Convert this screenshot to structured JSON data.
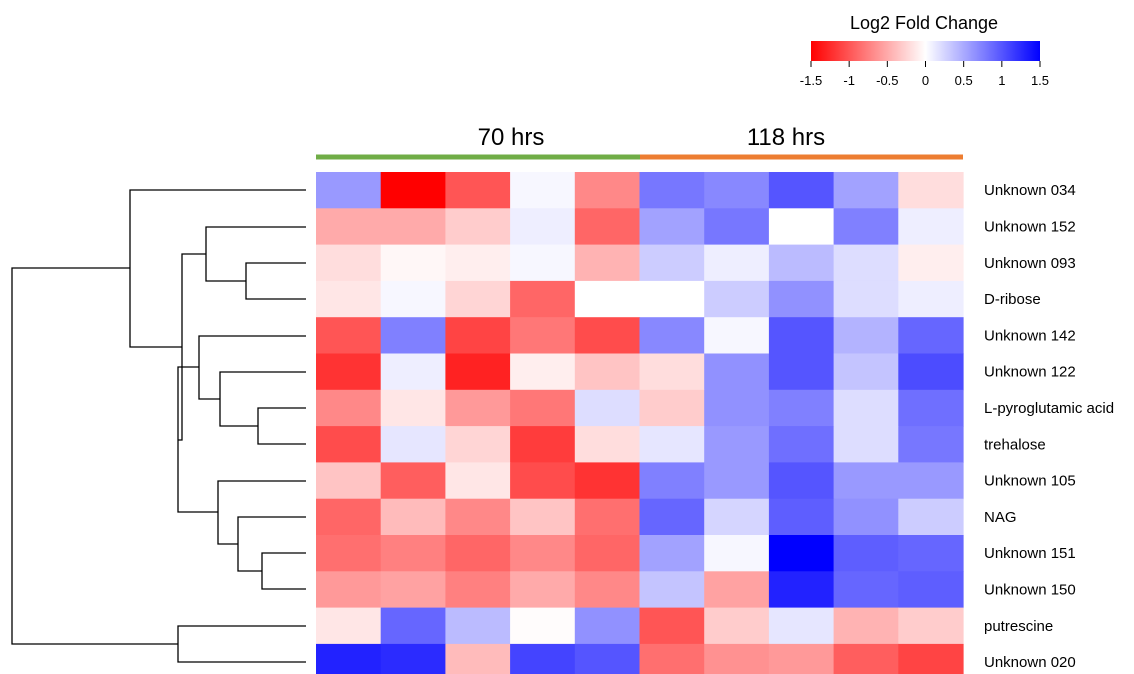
{
  "chart_data": {
    "type": "heatmap",
    "legend": {
      "title": "Log2 Fold Change",
      "ticks": [
        "-1.5",
        "-1",
        "-0.5",
        "0",
        "0.5",
        "1",
        "1.5"
      ],
      "range": [
        -1.5,
        1.5
      ],
      "colors": {
        "low": "#ff0000",
        "mid": "#ffffff",
        "high": "#0000ff"
      }
    },
    "groups": [
      {
        "label": "70 hrs",
        "columns": 5,
        "color": "#70ad47"
      },
      {
        "label": "118 hrs",
        "columns": 5,
        "color": "#ed7d31"
      }
    ],
    "rows": [
      "Unknown 034",
      "Unknown 152",
      "Unknown 093",
      "D-ribose",
      "Unknown 142",
      "Unknown 122",
      "L-pyroglutamic acid",
      "trehalose",
      "Unknown 105",
      "NAG",
      "Unknown 151",
      "Unknown 150",
      "putrescine",
      "Unknown 020"
    ],
    "values": [
      [
        0.6,
        -1.5,
        -1.0,
        0.05,
        -0.7,
        0.8,
        0.7,
        1.0,
        0.55,
        -0.2
      ],
      [
        -0.5,
        -0.5,
        -0.3,
        0.1,
        -0.9,
        0.55,
        0.8,
        0.0,
        0.75,
        0.1
      ],
      [
        -0.2,
        -0.05,
        -0.1,
        0.05,
        -0.45,
        0.3,
        0.1,
        0.4,
        0.2,
        -0.1
      ],
      [
        -0.15,
        0.05,
        -0.25,
        -0.9,
        0.0,
        0.0,
        0.3,
        0.65,
        0.2,
        0.1
      ],
      [
        -1.0,
        0.75,
        -1.1,
        -0.8,
        -1.05,
        0.7,
        0.05,
        1.0,
        0.45,
        0.9
      ],
      [
        -1.2,
        0.1,
        -1.3,
        -0.1,
        -0.35,
        -0.2,
        0.65,
        1.0,
        0.35,
        1.05
      ],
      [
        -0.7,
        -0.15,
        -0.6,
        -0.8,
        0.2,
        -0.3,
        0.65,
        0.75,
        0.2,
        0.85
      ],
      [
        -1.05,
        0.15,
        -0.25,
        -1.15,
        -0.2,
        0.15,
        0.6,
        0.85,
        0.2,
        0.8
      ],
      [
        -0.35,
        -0.95,
        -0.15,
        -1.05,
        -1.2,
        0.75,
        0.6,
        1.0,
        0.6,
        0.6
      ],
      [
        -0.9,
        -0.4,
        -0.7,
        -0.35,
        -0.85,
        0.9,
        0.25,
        0.95,
        0.65,
        0.3
      ],
      [
        -0.85,
        -0.75,
        -0.9,
        -0.7,
        -0.9,
        0.55,
        0.05,
        1.5,
        0.95,
        0.9
      ],
      [
        -0.6,
        -0.55,
        -0.75,
        -0.5,
        -0.7,
        0.35,
        -0.55,
        1.3,
        0.9,
        0.95
      ],
      [
        -0.15,
        0.9,
        0.4,
        -0.02,
        0.65,
        -1.0,
        -0.3,
        0.15,
        -0.45,
        -0.3
      ],
      [
        1.3,
        1.25,
        -0.4,
        1.1,
        1.0,
        -0.85,
        -0.65,
        -0.6,
        -0.95,
        -1.1
      ]
    ]
  }
}
